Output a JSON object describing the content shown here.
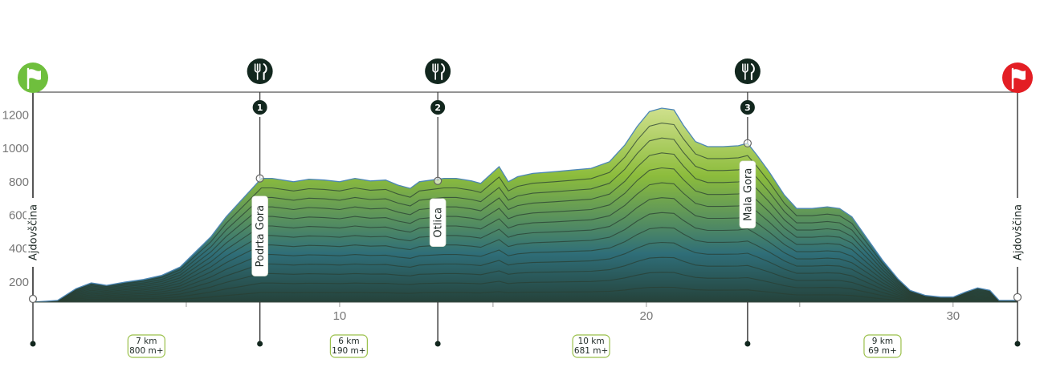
{
  "chart_data": {
    "type": "area",
    "title": "",
    "xlabel": "",
    "ylabel": "",
    "xlim": [
      0,
      32.1
    ],
    "ylim": [
      80,
      1300
    ],
    "yticks": [
      200,
      400,
      600,
      800,
      1000,
      1200
    ],
    "xticks": [
      10,
      20,
      30
    ],
    "minor_xticks": [
      5,
      15,
      25
    ],
    "profile": [
      [
        0,
        80
      ],
      [
        0.8,
        90
      ],
      [
        1.4,
        160
      ],
      [
        1.9,
        195
      ],
      [
        2.4,
        180
      ],
      [
        3.0,
        200
      ],
      [
        3.6,
        215
      ],
      [
        4.2,
        240
      ],
      [
        4.8,
        290
      ],
      [
        5.3,
        380
      ],
      [
        5.8,
        470
      ],
      [
        6.3,
        590
      ],
      [
        6.8,
        690
      ],
      [
        7.3,
        790
      ],
      [
        7.45,
        820
      ],
      [
        7.8,
        820
      ],
      [
        8.5,
        800
      ],
      [
        9.0,
        815
      ],
      [
        9.5,
        810
      ],
      [
        10.0,
        800
      ],
      [
        10.5,
        820
      ],
      [
        11.0,
        805
      ],
      [
        11.5,
        810
      ],
      [
        11.9,
        780
      ],
      [
        12.3,
        760
      ],
      [
        12.6,
        800
      ],
      [
        13.0,
        810
      ],
      [
        13.4,
        820
      ],
      [
        13.8,
        820
      ],
      [
        14.3,
        805
      ],
      [
        14.6,
        790
      ],
      [
        14.9,
        840
      ],
      [
        15.2,
        890
      ],
      [
        15.5,
        800
      ],
      [
        15.8,
        830
      ],
      [
        16.3,
        850
      ],
      [
        17.0,
        860
      ],
      [
        17.6,
        870
      ],
      [
        18.2,
        880
      ],
      [
        18.8,
        920
      ],
      [
        19.3,
        1020
      ],
      [
        19.7,
        1130
      ],
      [
        20.1,
        1220
      ],
      [
        20.5,
        1240
      ],
      [
        20.9,
        1230
      ],
      [
        21.2,
        1140
      ],
      [
        21.6,
        1040
      ],
      [
        22.0,
        1010
      ],
      [
        22.5,
        1010
      ],
      [
        23.0,
        1015
      ],
      [
        23.3,
        1030
      ],
      [
        23.6,
        960
      ],
      [
        24.0,
        860
      ],
      [
        24.5,
        720
      ],
      [
        24.9,
        640
      ],
      [
        25.4,
        640
      ],
      [
        25.9,
        650
      ],
      [
        26.3,
        640
      ],
      [
        26.7,
        590
      ],
      [
        27.2,
        460
      ],
      [
        27.7,
        330
      ],
      [
        28.2,
        220
      ],
      [
        28.6,
        150
      ],
      [
        29.1,
        120
      ],
      [
        29.6,
        110
      ],
      [
        30.0,
        110
      ],
      [
        30.4,
        140
      ],
      [
        30.8,
        165
      ],
      [
        31.2,
        150
      ],
      [
        31.5,
        90
      ],
      [
        32.1,
        90
      ]
    ],
    "start": {
      "label": "Ajdovščina",
      "km": 0,
      "elevation": 80
    },
    "finish": {
      "label": "Ajdovščina",
      "km": 32.1,
      "elevation": 90
    },
    "aid_stations": [
      {
        "number": "1",
        "label": "Podrta Gora",
        "km": 7.4,
        "elevation": 820
      },
      {
        "number": "2",
        "label": "Otlica",
        "km": 13.2,
        "elevation": 805
      },
      {
        "number": "3",
        "label": "Mala Gora",
        "km": 23.3,
        "elevation": 1030
      }
    ],
    "segments": [
      {
        "distance": "7 km",
        "gain": "800 m+",
        "km": 3.7
      },
      {
        "distance": "6 km",
        "gain": "190 m+",
        "km": 10.3
      },
      {
        "distance": "10 km",
        "gain": "681 m+",
        "km": 18.2
      },
      {
        "distance": "9 km",
        "gain": "69 m+",
        "km": 27.7
      }
    ]
  },
  "colors": {
    "fill_top": "#cfe08c",
    "fill_mid": "#8cbc3c",
    "fill_low": "#2f6e78",
    "fill_bottom": "#25423a",
    "outline": "#4d86b5",
    "dark_marker": "#12271e",
    "start_flag": "#6fbf3d",
    "finish_flag": "#e31e24",
    "badge_border": "#9ac04a",
    "axis": "#555555"
  },
  "icons": {
    "start": "green-flag-icon",
    "finish": "red-flag-icon",
    "aid": "fork-knife-icon"
  }
}
